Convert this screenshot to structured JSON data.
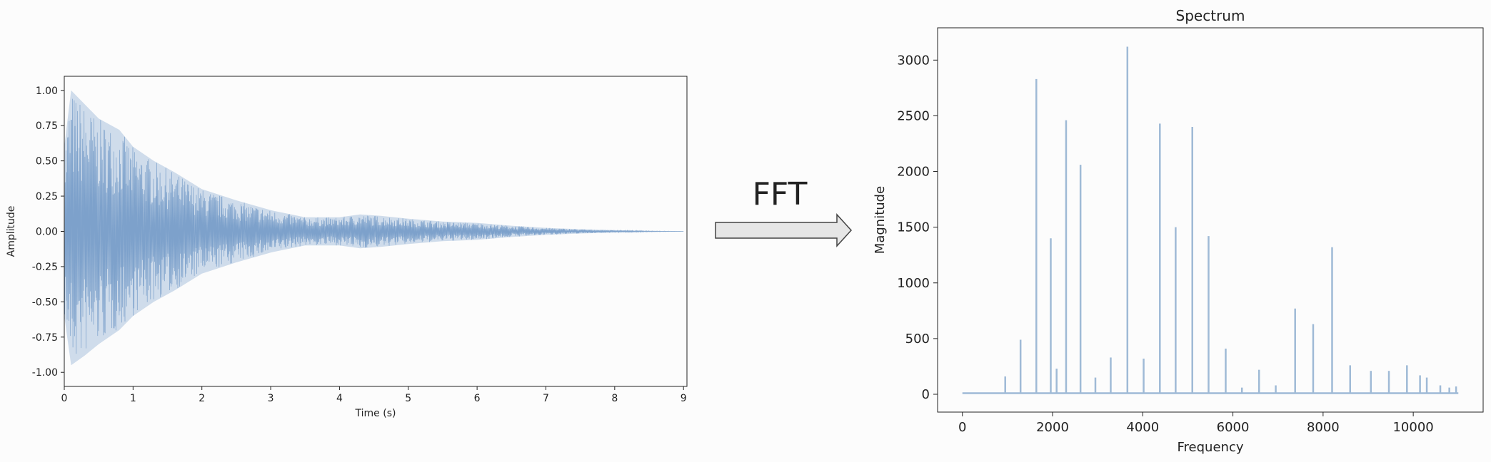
{
  "chart_data": [
    {
      "type": "line",
      "title": "",
      "xlabel": "Time (s)",
      "ylabel": "Amplitude",
      "xlim": [
        0,
        9.05
      ],
      "ylim": [
        -1.1,
        1.1
      ],
      "xticks": [
        "0",
        "1",
        "2",
        "3",
        "4",
        "5",
        "6",
        "7",
        "8",
        "9"
      ],
      "yticks": [
        "-1.00",
        "-0.75",
        "-0.50",
        "-0.25",
        "0.00",
        "0.25",
        "0.50",
        "0.75",
        "1.00"
      ],
      "color": "#6e97c6",
      "series": [
        {
          "x": [
            0,
            0.1,
            0.3,
            0.5,
            0.8,
            1.0,
            1.3,
            1.6,
            2.0,
            2.5,
            3.0,
            3.5,
            4.0,
            4.3,
            4.6,
            5.0,
            5.5,
            6.0,
            6.5,
            7.0,
            7.5,
            8.0,
            8.5,
            9.0
          ],
          "upper": [
            0.6,
            1.0,
            0.9,
            0.8,
            0.72,
            0.6,
            0.5,
            0.42,
            0.3,
            0.22,
            0.15,
            0.1,
            0.1,
            0.12,
            0.11,
            0.09,
            0.07,
            0.06,
            0.04,
            0.025,
            0.015,
            0.008,
            0.004,
            0.0
          ],
          "lower": [
            -0.6,
            -0.95,
            -0.88,
            -0.8,
            -0.7,
            -0.6,
            -0.5,
            -0.42,
            -0.3,
            -0.22,
            -0.15,
            -0.1,
            -0.1,
            -0.12,
            -0.11,
            -0.09,
            -0.07,
            -0.06,
            -0.04,
            -0.025,
            -0.015,
            -0.008,
            -0.004,
            0.0
          ]
        }
      ]
    },
    {
      "type": "line",
      "title": "Spectrum",
      "xlabel": "Frequency",
      "ylabel": "Magnitude",
      "xlim": [
        -550,
        11550
      ],
      "ylim": [
        -160,
        3290
      ],
      "xticks": [
        0,
        2000,
        4000,
        6000,
        8000,
        10000
      ],
      "yticks": [
        0,
        500,
        1000,
        1500,
        2000,
        2500,
        3000
      ],
      "color": "#9fbad6",
      "baseline": 10,
      "peaks": [
        {
          "x": 950,
          "y": 160
        },
        {
          "x": 1290,
          "y": 490
        },
        {
          "x": 1640,
          "y": 2830
        },
        {
          "x": 1960,
          "y": 1400
        },
        {
          "x": 2090,
          "y": 230
        },
        {
          "x": 2300,
          "y": 2460
        },
        {
          "x": 2620,
          "y": 2060
        },
        {
          "x": 2950,
          "y": 150
        },
        {
          "x": 3290,
          "y": 330
        },
        {
          "x": 3660,
          "y": 3120
        },
        {
          "x": 4020,
          "y": 320
        },
        {
          "x": 4380,
          "y": 2430
        },
        {
          "x": 4730,
          "y": 1500
        },
        {
          "x": 5100,
          "y": 2400
        },
        {
          "x": 5460,
          "y": 1420
        },
        {
          "x": 5840,
          "y": 410
        },
        {
          "x": 6200,
          "y": 60
        },
        {
          "x": 6580,
          "y": 220
        },
        {
          "x": 6950,
          "y": 80
        },
        {
          "x": 7380,
          "y": 770
        },
        {
          "x": 7780,
          "y": 630
        },
        {
          "x": 8200,
          "y": 1320
        },
        {
          "x": 8600,
          "y": 260
        },
        {
          "x": 9060,
          "y": 210
        },
        {
          "x": 9460,
          "y": 210
        },
        {
          "x": 9860,
          "y": 260
        },
        {
          "x": 10150,
          "y": 170
        },
        {
          "x": 10300,
          "y": 150
        },
        {
          "x": 10600,
          "y": 80
        },
        {
          "x": 10800,
          "y": 60
        },
        {
          "x": 10950,
          "y": 70
        }
      ]
    }
  ],
  "arrow_label": "FFT"
}
